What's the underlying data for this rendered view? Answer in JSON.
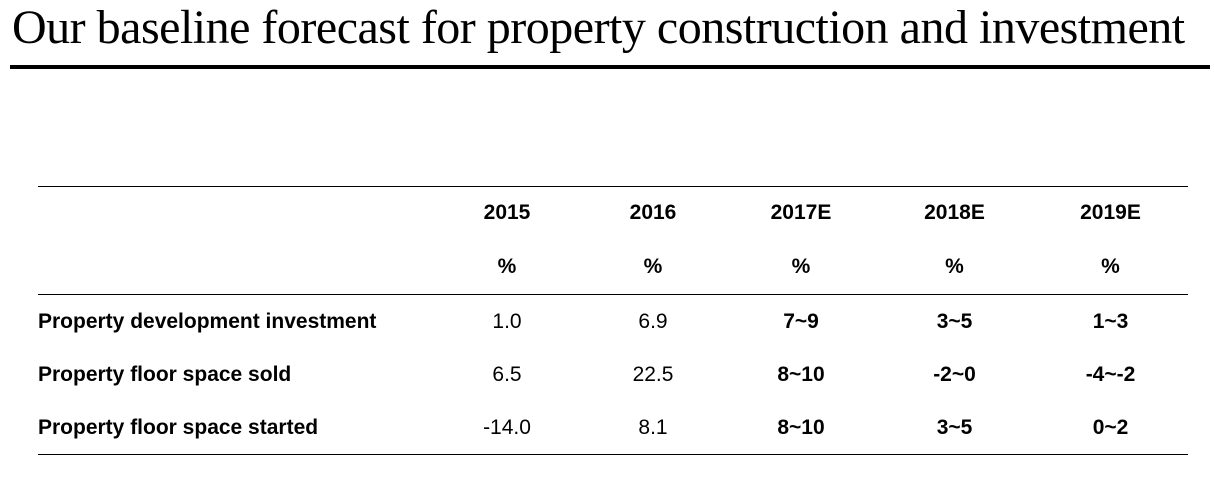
{
  "title": "Our baseline forecast for property construction and investment",
  "table": {
    "years": [
      "2015",
      "2016",
      "2017E",
      "2018E",
      "2019E"
    ],
    "units": [
      "%",
      "%",
      "%",
      "%",
      "%"
    ],
    "rows": [
      {
        "label": "Property development investment",
        "values": [
          "1.0",
          "6.9",
          "7~9",
          "3~5",
          "1~3"
        ]
      },
      {
        "label": "Property floor space sold",
        "values": [
          "6.5",
          "22.5",
          "8~10",
          "-2~0",
          "-4~-2"
        ]
      },
      {
        "label": "Property floor space started",
        "values": [
          "-14.0",
          "8.1",
          "8~10",
          "3~5",
          "0~2"
        ]
      }
    ]
  }
}
